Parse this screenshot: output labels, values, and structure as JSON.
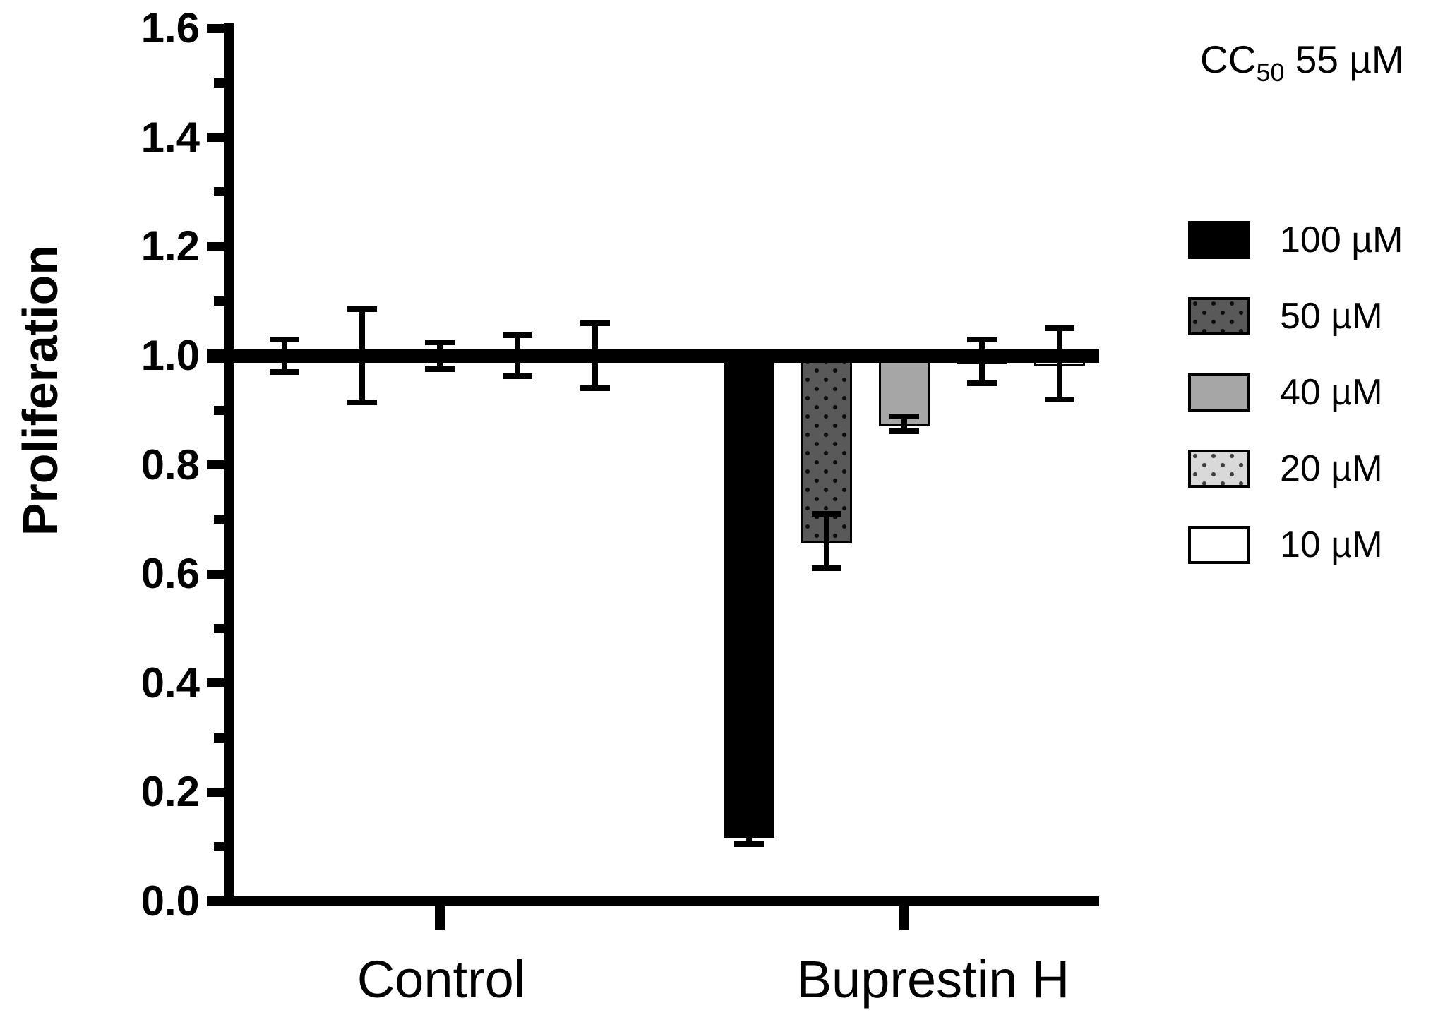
{
  "annotation": {
    "cc_prefix": "CC",
    "cc_sub": "50",
    "cc_value": " 55 µM"
  },
  "axes": {
    "y_title": "Proliferation",
    "y_tick_labels": [
      "0.0",
      "0.2",
      "0.4",
      "0.6",
      "0.8",
      "1.0",
      "1.2",
      "1.4",
      "1.6"
    ]
  },
  "chart_data": {
    "type": "bar",
    "annotation": "CC50 55 µM",
    "categories": [
      "Control",
      "Buprestin H"
    ],
    "series": [
      {
        "name": "100 µM",
        "values": [
          1.0,
          0.12
        ],
        "errors": [
          0.03,
          0.015
        ],
        "fill": "#000000",
        "pattern": "solid",
        "dot_color": null
      },
      {
        "name": "50 µM",
        "values": [
          1.0,
          0.66
        ],
        "errors": [
          0.085,
          0.05
        ],
        "fill": "#595959",
        "pattern": "dots",
        "dot_color": "#0d0d0d"
      },
      {
        "name": "40 µM",
        "values": [
          1.0,
          0.875
        ],
        "errors": [
          0.025,
          0.013
        ],
        "fill": "#a6a6a6",
        "pattern": "solid",
        "dot_color": null
      },
      {
        "name": "20 µM",
        "values": [
          1.0,
          0.99
        ],
        "errors": [
          0.038,
          0.04
        ],
        "fill": "#d9d9d9",
        "pattern": "dots",
        "dot_color": "#3d3d3d"
      },
      {
        "name": "10 µM",
        "values": [
          1.0,
          0.985
        ],
        "errors": [
          0.06,
          0.065
        ],
        "fill": "#ffffff",
        "pattern": "solid",
        "dot_color": null
      }
    ],
    "baseline": 1.0,
    "ylabel": "Proliferation",
    "ylim": [
      0.0,
      1.6
    ],
    "y_major_step": 0.2,
    "y_minor_step": 0.1,
    "grid": false,
    "legend_position": "right",
    "bar_outline_color": "#000000",
    "axis_color": "#000000"
  }
}
